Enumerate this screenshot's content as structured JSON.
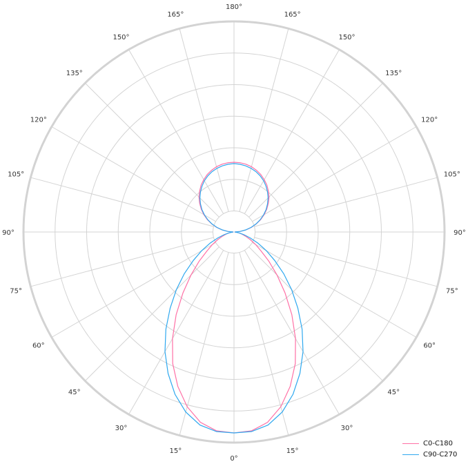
{
  "chart_data": {
    "type": "polar-line",
    "title": "",
    "angle_unit": "degrees",
    "angle_zero": "bottom",
    "angle_ticks": [
      0,
      15,
      30,
      45,
      60,
      75,
      90,
      105,
      120,
      135,
      150,
      165,
      180
    ],
    "angle_tick_labels": [
      "0°",
      "15°",
      "30°",
      "45°",
      "60°",
      "75°",
      "90°",
      "105°",
      "120°",
      "135°",
      "150°",
      "165°",
      "180°"
    ],
    "radial_gridlines": [
      0.1,
      0.25,
      0.4,
      0.55,
      0.7,
      0.85,
      1.0
    ],
    "radial_tick_labels_shown": false,
    "grid": true,
    "legend_placement": "bottom-right",
    "gamma": [
      0,
      5,
      10,
      15,
      20,
      25,
      30,
      35,
      40,
      45,
      50,
      55,
      60,
      65,
      70,
      75,
      80,
      85,
      90,
      95,
      100,
      105,
      110,
      115,
      120,
      125,
      130,
      135,
      140,
      145,
      150,
      155,
      160,
      165,
      170,
      175,
      180
    ],
    "series": [
      {
        "name": "C0-C180",
        "color": "#ff6fa5",
        "values": [
          0.954,
          0.948,
          0.918,
          0.859,
          0.78,
          0.689,
          0.584,
          0.479,
          0.377,
          0.289,
          0.216,
          0.157,
          0.118,
          0.085,
          0.059,
          0.039,
          0.023,
          0.01,
          0.003,
          0.029,
          0.058,
          0.086,
          0.113,
          0.14,
          0.166,
          0.19,
          0.213,
          0.235,
          0.254,
          0.272,
          0.287,
          0.301,
          0.312,
          0.321,
          0.327,
          0.33,
          0.331
        ]
      },
      {
        "name": "C90-C270",
        "color": "#2ea8ef",
        "values": [
          0.954,
          0.951,
          0.931,
          0.885,
          0.82,
          0.741,
          0.656,
          0.564,
          0.472,
          0.387,
          0.308,
          0.236,
          0.177,
          0.125,
          0.082,
          0.049,
          0.026,
          0.01,
          0.003,
          0.028,
          0.056,
          0.084,
          0.111,
          0.137,
          0.162,
          0.186,
          0.208,
          0.229,
          0.248,
          0.265,
          0.281,
          0.294,
          0.305,
          0.313,
          0.319,
          0.323,
          0.325
        ]
      }
    ]
  }
}
